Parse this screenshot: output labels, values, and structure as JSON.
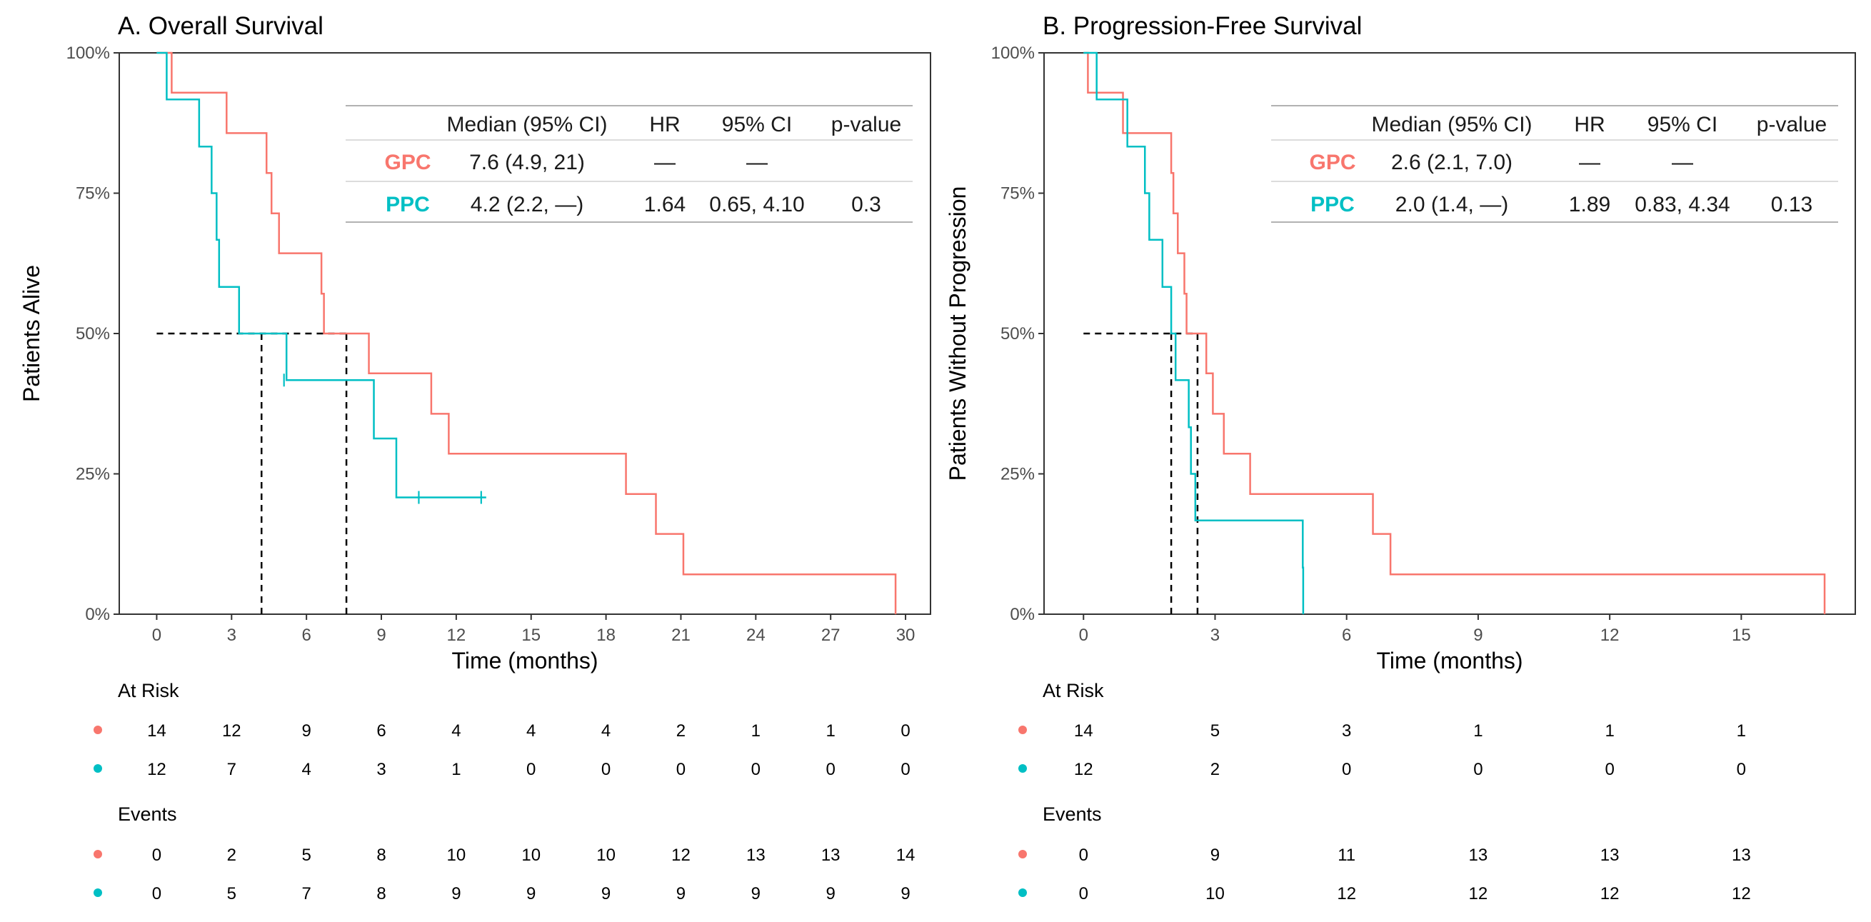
{
  "colors": {
    "gpc": "#F8766D",
    "ppc": "#00BFC4",
    "axis": "#333333",
    "tick": "#4d4d4d",
    "rule": "#999999"
  },
  "chart_data": [
    {
      "type": "line",
      "subtype": "kaplan-meier",
      "title": "A. Overall Survival",
      "xlabel": "Time (months)",
      "ylabel": "Patients Alive",
      "xlim": [
        -1.5,
        31
      ],
      "ylim": [
        0,
        1
      ],
      "xticks": [
        0,
        3,
        6,
        9,
        12,
        15,
        18,
        21,
        24,
        27,
        30
      ],
      "yticks": [
        0,
        0.25,
        0.5,
        0.75,
        1.0
      ],
      "ytick_labels": [
        "0%",
        "25%",
        "50%",
        "75%",
        "100%"
      ],
      "series": [
        {
          "name": "GPC",
          "color": "#F8766D",
          "steps": [
            [
              0,
              1
            ],
            [
              0.6,
              0.929
            ],
            [
              2.8,
              0.857
            ],
            [
              4.4,
              0.786
            ],
            [
              4.6,
              0.714
            ],
            [
              4.9,
              0.643
            ],
            [
              6.6,
              0.571
            ],
            [
              6.7,
              0.5
            ],
            [
              8.5,
              0.429
            ],
            [
              11,
              0.357
            ],
            [
              11.7,
              0.286
            ],
            [
              18.8,
              0.214
            ],
            [
              20,
              0.143
            ],
            [
              21.1,
              0.071
            ],
            [
              29.6,
              0
            ]
          ],
          "end": 29.6,
          "censor": []
        },
        {
          "name": "PPC",
          "color": "#00BFC4",
          "steps": [
            [
              0,
              1
            ],
            [
              0.4,
              0.917
            ],
            [
              1.7,
              0.833
            ],
            [
              2.2,
              0.75
            ],
            [
              2.4,
              0.667
            ],
            [
              2.5,
              0.583
            ],
            [
              3.3,
              0.5
            ],
            [
              5.2,
              0.417
            ],
            [
              8.7,
              0.313
            ],
            [
              9.6,
              0.208
            ]
          ],
          "end": 13.2,
          "censor": [
            [
              5.1,
              0.417
            ],
            [
              10.5,
              0.208
            ],
            [
              13,
              0.208
            ]
          ]
        }
      ],
      "median_lines": [
        4.2,
        7.6
      ],
      "table": {
        "headers": [
          "Median (95% CI)",
          "HR",
          "95% CI",
          "p-value"
        ],
        "rows": [
          {
            "group": "GPC",
            "median": "7.6 (4.9, 21)",
            "hr": "—",
            "ci": "—",
            "p": ""
          },
          {
            "group": "PPC",
            "median": "4.2 (2.2, —)",
            "hr": "1.64",
            "ci": "0.65, 4.10",
            "p": "0.3"
          }
        ]
      },
      "risk_title": "At Risk",
      "events_title": "Events",
      "risk_times": [
        0,
        3,
        6,
        9,
        12,
        15,
        18,
        21,
        24,
        27,
        30
      ],
      "at_risk": {
        "GPC": [
          14,
          12,
          9,
          6,
          4,
          4,
          4,
          2,
          1,
          1,
          0
        ],
        "PPC": [
          12,
          7,
          4,
          3,
          1,
          0,
          0,
          0,
          0,
          0,
          0
        ]
      },
      "events": {
        "GPC": [
          0,
          2,
          5,
          8,
          10,
          10,
          10,
          12,
          13,
          13,
          14
        ],
        "PPC": [
          0,
          5,
          7,
          8,
          9,
          9,
          9,
          9,
          9,
          9,
          9
        ]
      }
    },
    {
      "type": "line",
      "subtype": "kaplan-meier",
      "title": "B. Progression-Free Survival",
      "xlabel": "Time (months)",
      "ylabel": "Patients Without Progression",
      "xlim": [
        -0.9,
        17.6
      ],
      "ylim": [
        0,
        1
      ],
      "xticks": [
        0,
        3,
        6,
        9,
        12,
        15
      ],
      "yticks": [
        0,
        0.25,
        0.5,
        0.75,
        1.0
      ],
      "ytick_labels": [
        "0%",
        "25%",
        "50%",
        "75%",
        "100%"
      ],
      "series": [
        {
          "name": "GPC",
          "color": "#F8766D",
          "steps": [
            [
              0,
              1
            ],
            [
              0.1,
              0.929
            ],
            [
              0.9,
              0.857
            ],
            [
              2.0,
              0.786
            ],
            [
              2.05,
              0.714
            ],
            [
              2.15,
              0.643
            ],
            [
              2.3,
              0.571
            ],
            [
              2.35,
              0.5
            ],
            [
              2.8,
              0.429
            ],
            [
              2.95,
              0.357
            ],
            [
              3.2,
              0.286
            ],
            [
              3.8,
              0.214
            ],
            [
              6.6,
              0.143
            ],
            [
              7.0,
              0.071
            ],
            [
              16.9,
              0
            ]
          ],
          "end": 16.9,
          "censor": []
        },
        {
          "name": "PPC",
          "color": "#00BFC4",
          "steps": [
            [
              0,
              1
            ],
            [
              0.3,
              0.917
            ],
            [
              1.0,
              0.833
            ],
            [
              1.4,
              0.75
            ],
            [
              1.5,
              0.667
            ],
            [
              1.8,
              0.583
            ],
            [
              2.0,
              0.5
            ],
            [
              2.1,
              0.417
            ],
            [
              2.4,
              0.333
            ],
            [
              2.45,
              0.25
            ],
            [
              2.55,
              0.167
            ],
            [
              5.0,
              0.083
            ],
            [
              5.01,
              0
            ]
          ],
          "end": 5.01,
          "censor": []
        }
      ],
      "median_lines": [
        2.0,
        2.6
      ],
      "table": {
        "headers": [
          "Median (95% CI)",
          "HR",
          "95% CI",
          "p-value"
        ],
        "rows": [
          {
            "group": "GPC",
            "median": "2.6 (2.1, 7.0)",
            "hr": "—",
            "ci": "—",
            "p": ""
          },
          {
            "group": "PPC",
            "median": "2.0 (1.4, —)",
            "hr": "1.89",
            "ci": "0.83, 4.34",
            "p": "0.13"
          }
        ]
      },
      "risk_title": "At Risk",
      "events_title": "Events",
      "risk_times": [
        0,
        3,
        6,
        9,
        12,
        15
      ],
      "at_risk": {
        "GPC": [
          14,
          5,
          3,
          1,
          1,
          1
        ],
        "PPC": [
          12,
          2,
          0,
          0,
          0,
          0
        ]
      },
      "events": {
        "GPC": [
          0,
          9,
          11,
          13,
          13,
          13
        ],
        "PPC": [
          0,
          10,
          12,
          12,
          12,
          12
        ]
      }
    }
  ]
}
